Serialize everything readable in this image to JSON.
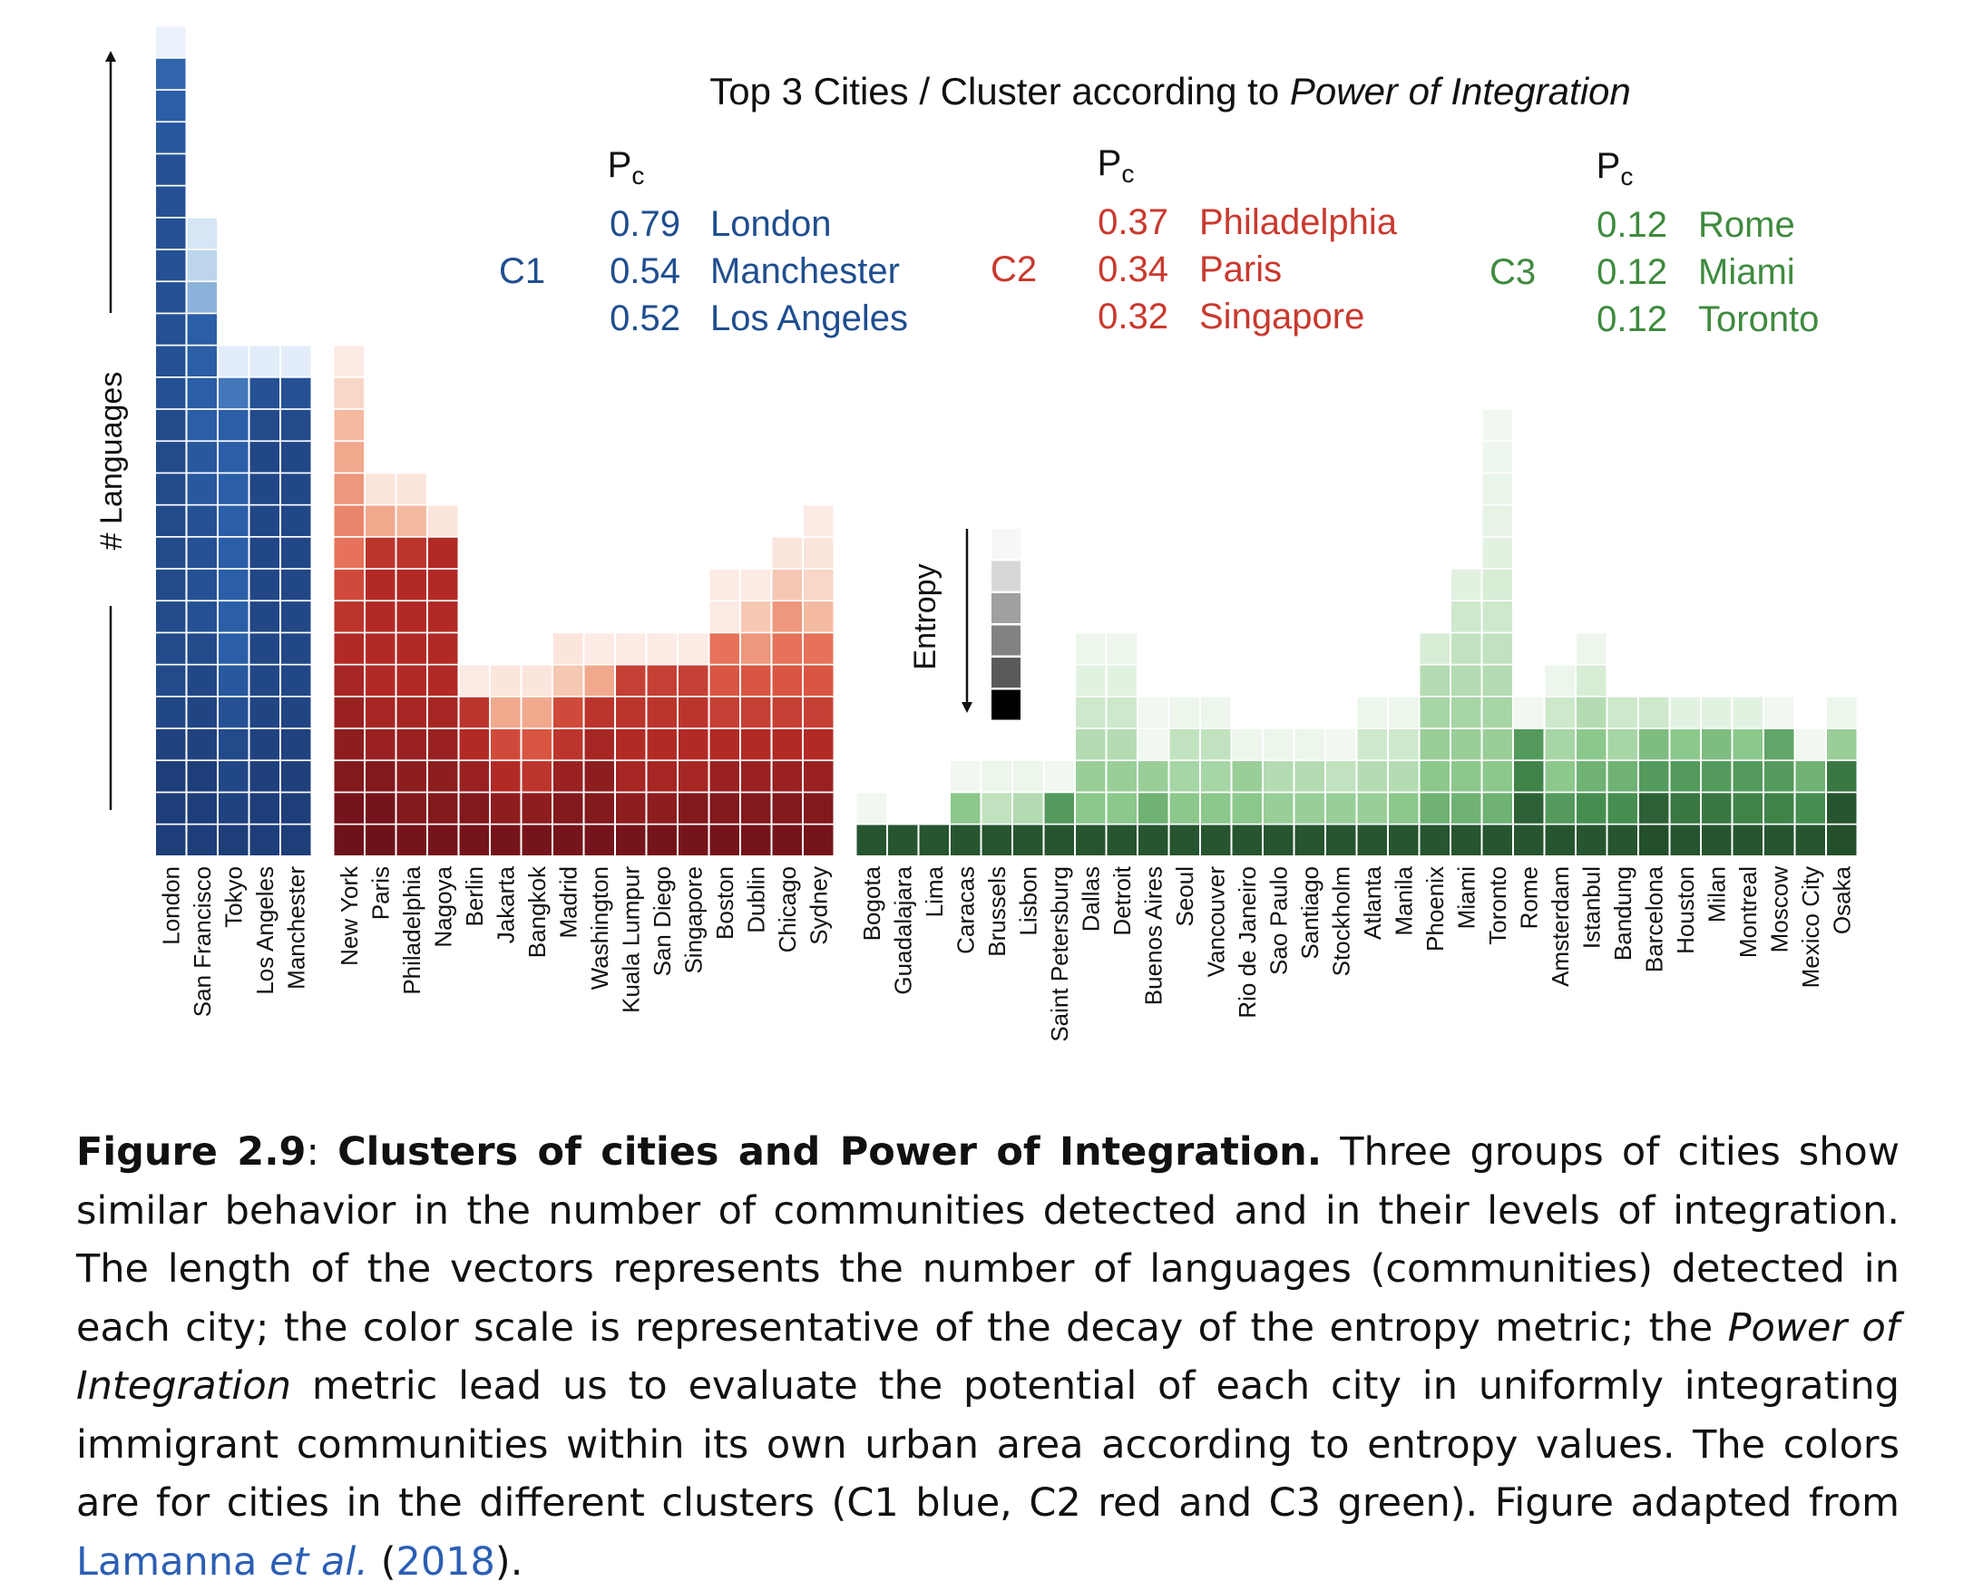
{
  "chart_data": {
    "type": "heatmap",
    "title": "Top 3 Cities / Cluster according to",
    "title_italic": "Power of Integration",
    "ylabel": "# Languages",
    "entropy_label": "Entropy",
    "pc_label": "P",
    "pc_subscript": "c",
    "colors": {
      "C1": "#1f4e8f",
      "C2": "#c9392e",
      "C3": "#3f8a3f"
    },
    "clusters": [
      {
        "name": "C1",
        "top3": [
          {
            "pc": "0.79",
            "city": "London"
          },
          {
            "pc": "0.54",
            "city": "Manchester"
          },
          {
            "pc": "0.52",
            "city": "Los Angeles"
          }
        ],
        "cities": [
          {
            "name": "London",
            "cells": [
              0.05,
              0.05,
              0.05,
              0.08,
              0.12,
              0.15,
              0.15,
              0.15,
              0.15,
              0.15,
              0.15,
              0.15,
              0.15,
              0.15,
              0.2,
              0.2,
              0.2,
              0.2,
              0.2,
              0.2,
              0.2,
              0.2,
              0.25,
              0.3,
              0.35,
              0.97
            ]
          },
          {
            "name": "San Francisco",
            "cells": [
              0.05,
              0.05,
              0.05,
              0.08,
              0.1,
              0.12,
              0.15,
              0.2,
              0.2,
              0.2,
              0.2,
              0.25,
              0.25,
              0.3,
              0.3,
              0.3,
              0.3,
              0.72,
              0.85,
              0.92
            ]
          },
          {
            "name": "Tokyo",
            "cells": [
              0.05,
              0.08,
              0.12,
              0.15,
              0.2,
              0.25,
              0.3,
              0.3,
              0.3,
              0.3,
              0.3,
              0.3,
              0.3,
              0.3,
              0.45,
              0.95
            ]
          },
          {
            "name": "Los Angeles",
            "cells": [
              0.05,
              0.05,
              0.06,
              0.08,
              0.1,
              0.12,
              0.12,
              0.12,
              0.12,
              0.12,
              0.12,
              0.12,
              0.12,
              0.15,
              0.2,
              0.95
            ]
          },
          {
            "name": "Manchester",
            "cells": [
              0.05,
              0.05,
              0.06,
              0.08,
              0.1,
              0.12,
              0.12,
              0.12,
              0.12,
              0.12,
              0.12,
              0.12,
              0.12,
              0.15,
              0.2,
              0.95
            ]
          }
        ]
      },
      {
        "name": "C2",
        "top3": [
          {
            "pc": "0.37",
            "city": "Philadelphia"
          },
          {
            "pc": "0.34",
            "city": "Paris"
          },
          {
            "pc": "0.32",
            "city": "Singapore"
          }
        ],
        "cities": [
          {
            "name": "New York",
            "cells": [
              0.02,
              0.05,
              0.1,
              0.15,
              0.2,
              0.25,
              0.3,
              0.35,
              0.45,
              0.6,
              0.65,
              0.7,
              0.75,
              0.8,
              0.9,
              0.97
            ]
          },
          {
            "name": "Paris",
            "cells": [
              0.02,
              0.05,
              0.1,
              0.2,
              0.25,
              0.3,
              0.3,
              0.3,
              0.3,
              0.35,
              0.75,
              0.95
            ]
          },
          {
            "name": "Philadelphia",
            "cells": [
              0.05,
              0.1,
              0.15,
              0.2,
              0.25,
              0.3,
              0.3,
              0.3,
              0.3,
              0.35,
              0.8,
              0.95
            ]
          },
          {
            "name": "Nagoya",
            "cells": [
              0.05,
              0.1,
              0.15,
              0.2,
              0.25,
              0.3,
              0.3,
              0.3,
              0.3,
              0.3,
              0.95
            ]
          },
          {
            "name": "Berlin",
            "cells": [
              0.05,
              0.1,
              0.2,
              0.3,
              0.35,
              0.97
            ]
          },
          {
            "name": "Jakarta",
            "cells": [
              0.05,
              0.15,
              0.3,
              0.45,
              0.75,
              0.95
            ]
          },
          {
            "name": "Bangkok",
            "cells": [
              0.05,
              0.15,
              0.35,
              0.5,
              0.75,
              0.95
            ]
          },
          {
            "name": "Madrid",
            "cells": [
              0.05,
              0.1,
              0.2,
              0.35,
              0.45,
              0.85,
              0.95
            ]
          },
          {
            "name": "Washington",
            "cells": [
              0.05,
              0.1,
              0.15,
              0.25,
              0.35,
              0.75,
              0.97
            ]
          },
          {
            "name": "Kuala Lumpur",
            "cells": [
              0.05,
              0.15,
              0.25,
              0.3,
              0.35,
              0.4,
              0.97
            ]
          },
          {
            "name": "San Diego",
            "cells": [
              0.05,
              0.15,
              0.25,
              0.3,
              0.35,
              0.4,
              0.97
            ]
          },
          {
            "name": "Singapore",
            "cells": [
              0.05,
              0.1,
              0.25,
              0.3,
              0.35,
              0.4,
              0.97
            ]
          },
          {
            "name": "Boston",
            "cells": [
              0.05,
              0.1,
              0.2,
              0.3,
              0.4,
              0.5,
              0.6,
              0.97,
              0.97
            ]
          },
          {
            "name": "Dublin",
            "cells": [
              0.05,
              0.1,
              0.2,
              0.3,
              0.4,
              0.5,
              0.7,
              0.85,
              0.97
            ]
          },
          {
            "name": "Chicago",
            "cells": [
              0.05,
              0.1,
              0.2,
              0.3,
              0.4,
              0.5,
              0.6,
              0.7,
              0.85,
              0.95
            ]
          },
          {
            "name": "Sydney",
            "cells": [
              0.05,
              0.1,
              0.2,
              0.3,
              0.4,
              0.5,
              0.6,
              0.8,
              0.9,
              0.95,
              0.97
            ]
          }
        ]
      },
      {
        "name": "C3",
        "top3": [
          {
            "pc": "0.12",
            "city": "Rome"
          },
          {
            "pc": "0.12",
            "city": "Miami"
          },
          {
            "pc": "0.12",
            "city": "Toronto"
          }
        ],
        "cities": [
          {
            "name": "Bogota",
            "cells": [
              0.05,
              0.97
            ]
          },
          {
            "name": "Guadalajara",
            "cells": [
              0.05
            ]
          },
          {
            "name": "Lima",
            "cells": [
              0.05
            ]
          },
          {
            "name": "Caracas",
            "cells": [
              0.05,
              0.55,
              0.97
            ]
          },
          {
            "name": "Brussels",
            "cells": [
              0.05,
              0.75,
              0.95
            ]
          },
          {
            "name": "Lisbon",
            "cells": [
              0.05,
              0.7,
              0.95
            ]
          },
          {
            "name": "Saint Petersburg",
            "cells": [
              0.05,
              0.35,
              0.97
            ]
          },
          {
            "name": "Dallas",
            "cells": [
              0.05,
              0.55,
              0.6,
              0.7,
              0.8,
              0.9,
              0.95
            ]
          },
          {
            "name": "Detroit",
            "cells": [
              0.05,
              0.55,
              0.6,
              0.7,
              0.8,
              0.9,
              0.95
            ]
          },
          {
            "name": "Buenos Aires",
            "cells": [
              0.05,
              0.45,
              0.6,
              0.97,
              0.97
            ]
          },
          {
            "name": "Seoul",
            "cells": [
              0.05,
              0.55,
              0.65,
              0.75,
              0.95
            ]
          },
          {
            "name": "Vancouver",
            "cells": [
              0.05,
              0.55,
              0.65,
              0.75,
              0.95
            ]
          },
          {
            "name": "Rio de Janeiro",
            "cells": [
              0.05,
              0.55,
              0.6,
              0.95
            ]
          },
          {
            "name": "Sao Paulo",
            "cells": [
              0.05,
              0.6,
              0.7,
              0.95
            ]
          },
          {
            "name": "Santiago",
            "cells": [
              0.05,
              0.6,
              0.7,
              0.95
            ]
          },
          {
            "name": "Stockholm",
            "cells": [
              0.05,
              0.6,
              0.75,
              0.97
            ]
          },
          {
            "name": "Atlanta",
            "cells": [
              0.05,
              0.6,
              0.7,
              0.8,
              0.95
            ]
          },
          {
            "name": "Manila",
            "cells": [
              0.05,
              0.55,
              0.7,
              0.8,
              0.95
            ]
          },
          {
            "name": "Phoenix",
            "cells": [
              0.05,
              0.45,
              0.55,
              0.6,
              0.65,
              0.7,
              0.85
            ]
          },
          {
            "name": "Miami",
            "cells": [
              0.05,
              0.45,
              0.55,
              0.6,
              0.65,
              0.7,
              0.75,
              0.8,
              0.9
            ]
          },
          {
            "name": "Toronto",
            "cells": [
              0.05,
              0.45,
              0.55,
              0.6,
              0.65,
              0.7,
              0.75,
              0.8,
              0.85,
              0.9,
              0.92,
              0.94,
              0.96,
              0.97
            ]
          },
          {
            "name": "Rome",
            "cells": [
              0.05,
              0.1,
              0.25,
              0.35,
              0.97
            ]
          },
          {
            "name": "Amsterdam",
            "cells": [
              0.05,
              0.35,
              0.55,
              0.65,
              0.8,
              0.95
            ]
          },
          {
            "name": "Istanbul",
            "cells": [
              0.05,
              0.3,
              0.45,
              0.55,
              0.7,
              0.85,
              0.95
            ]
          },
          {
            "name": "Bandung",
            "cells": [
              0.05,
              0.3,
              0.45,
              0.65,
              0.8
            ]
          },
          {
            "name": "Barcelona",
            "cells": [
              0.02,
              0.1,
              0.35,
              0.5,
              0.8
            ]
          },
          {
            "name": "Houston",
            "cells": [
              0.05,
              0.2,
              0.35,
              0.55,
              0.9
            ]
          },
          {
            "name": "Milan",
            "cells": [
              0.05,
              0.2,
              0.35,
              0.5,
              0.9
            ]
          },
          {
            "name": "Montreal",
            "cells": [
              0.05,
              0.25,
              0.35,
              0.55,
              0.9
            ]
          },
          {
            "name": "Moscow",
            "cells": [
              0.05,
              0.25,
              0.35,
              0.4,
              0.97
            ]
          },
          {
            "name": "Mexico City",
            "cells": [
              0.05,
              0.3,
              0.45,
              0.97
            ]
          },
          {
            "name": "Osaka",
            "cells": [
              0.02,
              0.05,
              0.2,
              0.6,
              0.95
            ]
          }
        ]
      }
    ]
  },
  "caption": {
    "label": "Figure 2.9",
    "colon": ": ",
    "title": "Clusters of cities and Power of Integration.",
    "text1": " Three groups of cities show similar behavior in the number of communities detected and in their levels of integration. The length of the vectors represents the number of languages (communities) detected in each city; the color scale is representative of the decay of the entropy metric; the ",
    "italic_term": "Power of Integration",
    "text2": " metric lead us to evaluate the potential of each city in uniformly integrating immigrant communities within its own urban area according to entropy values. The colors are for cities in the different clusters (C1 blue, C2 red and C3 green). Figure adapted from ",
    "cite_author": "Lamanna ",
    "cite_etal": "et al.",
    "cite_open": " (",
    "cite_year": "2018",
    "cite_close": ")."
  }
}
